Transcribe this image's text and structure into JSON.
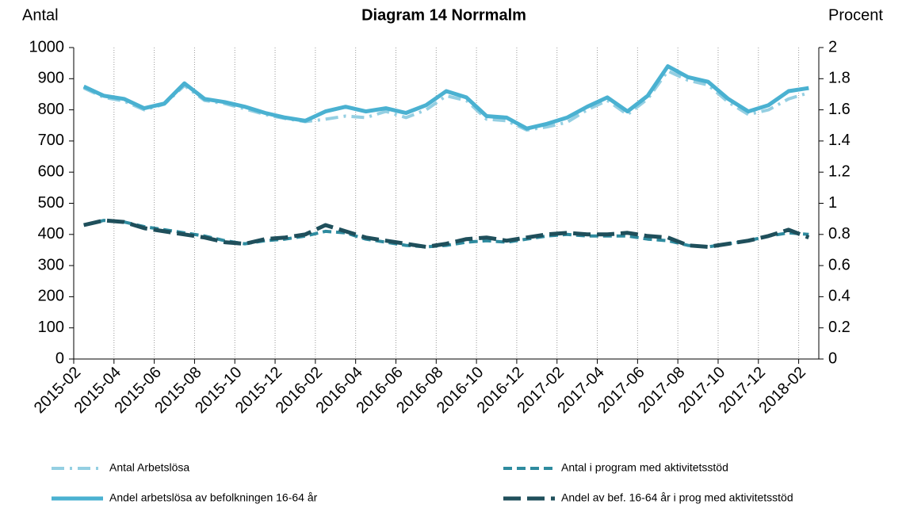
{
  "chart_data": {
    "type": "line",
    "title": "Diagram 14 Norrmalm",
    "y_label": "Antal",
    "y2_label": "Procent",
    "categories": [
      "2015-02",
      null,
      "2015-04",
      null,
      "2015-06",
      null,
      "2015-08",
      null,
      "2015-10",
      null,
      "2015-12",
      null,
      "2016-02",
      null,
      "2016-04",
      null,
      "2016-06",
      null,
      "2016-08",
      null,
      "2016-10",
      null,
      "2016-12",
      null,
      "2017-02",
      null,
      "2017-04",
      null,
      "2017-06",
      null,
      "2017-08",
      null,
      "2017-10",
      null,
      "2017-12",
      null,
      "2018-02"
    ],
    "ylim": [
      0,
      1000
    ],
    "yticks": [
      0,
      100,
      200,
      300,
      400,
      500,
      600,
      700,
      800,
      900,
      1000
    ],
    "y2lim": [
      0,
      2
    ],
    "y2ticks": [
      0,
      0.2,
      0.4,
      0.6,
      0.8,
      1,
      1.2,
      1.4,
      1.6,
      1.8,
      2
    ],
    "series": [
      {
        "name": "Antal Arbetslösa",
        "color": "#94cfe2",
        "axis": "y",
        "values": [
          870,
          840,
          828,
          800,
          818,
          878,
          830,
          820,
          803,
          785,
          772,
          762,
          770,
          780,
          775,
          795,
          775,
          800,
          845,
          830,
          770,
          765,
          735,
          745,
          760,
          800,
          830,
          785,
          835,
          925,
          895,
          880,
          825,
          785,
          800,
          835,
          855
        ]
      },
      {
        "name": "Antal i program med aktivitetsstöd",
        "color": "#2e8b9f",
        "axis": "y",
        "values": [
          430,
          445,
          440,
          425,
          415,
          405,
          395,
          380,
          370,
          380,
          385,
          395,
          410,
          405,
          385,
          375,
          365,
          360,
          365,
          375,
          380,
          375,
          385,
          395,
          400,
          395,
          395,
          395,
          385,
          380,
          365,
          360,
          370,
          380,
          395,
          405,
          400
        ]
      },
      {
        "name": "Andel arbetslösa av befolkningen 16-64 år",
        "color": "#4ab1d1",
        "axis": "y2",
        "values": [
          1.75,
          1.69,
          1.67,
          1.61,
          1.64,
          1.77,
          1.67,
          1.65,
          1.62,
          1.58,
          1.55,
          1.53,
          1.59,
          1.62,
          1.59,
          1.61,
          1.58,
          1.63,
          1.72,
          1.68,
          1.56,
          1.55,
          1.48,
          1.51,
          1.55,
          1.62,
          1.68,
          1.59,
          1.69,
          1.88,
          1.81,
          1.78,
          1.67,
          1.59,
          1.63,
          1.72,
          1.74
        ]
      },
      {
        "name": "Andel av bef. 16-64 år i prog med aktivitetsstöd",
        "color": "#1f4f5b",
        "axis": "y2",
        "values": [
          0.86,
          0.89,
          0.88,
          0.84,
          0.82,
          0.8,
          0.78,
          0.75,
          0.74,
          0.77,
          0.78,
          0.8,
          0.86,
          0.82,
          0.78,
          0.76,
          0.74,
          0.72,
          0.74,
          0.77,
          0.78,
          0.76,
          0.78,
          0.8,
          0.81,
          0.8,
          0.8,
          0.81,
          0.79,
          0.78,
          0.73,
          0.72,
          0.74,
          0.76,
          0.79,
          0.83,
          0.78
        ]
      }
    ]
  }
}
